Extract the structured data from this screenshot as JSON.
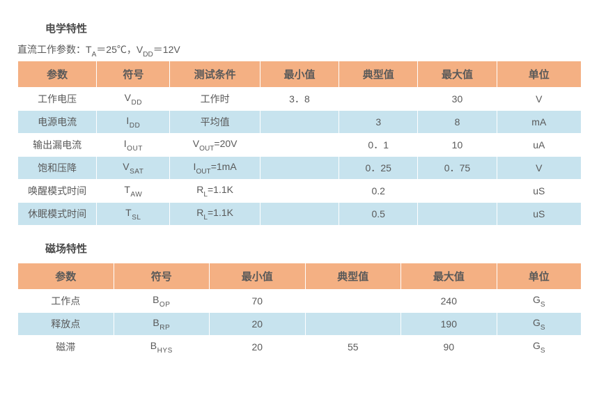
{
  "section1": {
    "title": "电学特性",
    "conditions_prefix": "直流工作参数：T",
    "conditions_sub1": "A",
    "conditions_mid": "＝25℃，V",
    "conditions_sub2": "DD",
    "conditions_suffix": "＝12V",
    "headers": [
      "参数",
      "符号",
      "测试条件",
      "最小值",
      "典型值",
      "最大值",
      "单位"
    ],
    "rows": [
      {
        "bg": "white",
        "param": "工作电压",
        "sym_main": "V",
        "sym_sub": "DD",
        "cond_plain": "工作时",
        "min": "3．8",
        "typ": "",
        "max": "30",
        "unit": "V"
      },
      {
        "bg": "blue",
        "param": "电源电流",
        "sym_main": "I",
        "sym_sub": "DD",
        "cond_plain": "平均值",
        "min": "",
        "typ": "3",
        "max": "8",
        "unit": "mA"
      },
      {
        "bg": "white",
        "param": "输出漏电流",
        "sym_main": "I",
        "sym_sub": "OUT",
        "cond_main": "V",
        "cond_sub": "OUT",
        "cond_suffix": "=20V",
        "min": "",
        "typ": "0．1",
        "max": "10",
        "unit": "uA"
      },
      {
        "bg": "blue",
        "param": "饱和压降",
        "sym_main": "V",
        "sym_sub": "SAT",
        "cond_main": "I",
        "cond_sub": "OUT",
        "cond_suffix": "=1mA",
        "min": "",
        "typ": "0．25",
        "max": "0．75",
        "unit": "V"
      },
      {
        "bg": "white",
        "param": "唤醒模式时间",
        "sym_main": "T",
        "sym_sub": "AW",
        "cond_main": "R",
        "cond_sub": "L",
        "cond_suffix": "=1.1K",
        "min": "",
        "typ": "0.2",
        "max": "",
        "unit": "uS"
      },
      {
        "bg": "blue",
        "param": "休眠模式时间",
        "sym_main": "T",
        "sym_sub": "SL",
        "cond_main": "R",
        "cond_sub": "L",
        "cond_suffix": "=1.1K",
        "min": "",
        "typ": "0.5",
        "max": "",
        "unit": "uS"
      }
    ]
  },
  "section2": {
    "title": "磁场特性",
    "headers": [
      "参数",
      "符号",
      "最小值",
      "典型值",
      "最大值",
      "单位"
    ],
    "rows": [
      {
        "bg": "white",
        "param": "工作点",
        "sym_main": "B",
        "sym_sub": "OP",
        "min": "70",
        "typ": "",
        "max": "240",
        "unit_main": "G",
        "unit_sub": "S"
      },
      {
        "bg": "blue",
        "param": "释放点",
        "sym_main": "B",
        "sym_sub": "RP",
        "min": "20",
        "typ": "",
        "max": "190",
        "unit_main": "G",
        "unit_sub": "S"
      },
      {
        "bg": "white",
        "param": "磁滞",
        "sym_main": "B",
        "sym_sub": "HYS",
        "min": "20",
        "typ": "55",
        "max": "90",
        "unit_main": "G",
        "unit_sub": "S"
      }
    ]
  },
  "colors": {
    "header_bg": "#f4b083",
    "row_alt_bg": "#c7e3ee",
    "row_bg": "#ffffff",
    "text": "#595959"
  }
}
